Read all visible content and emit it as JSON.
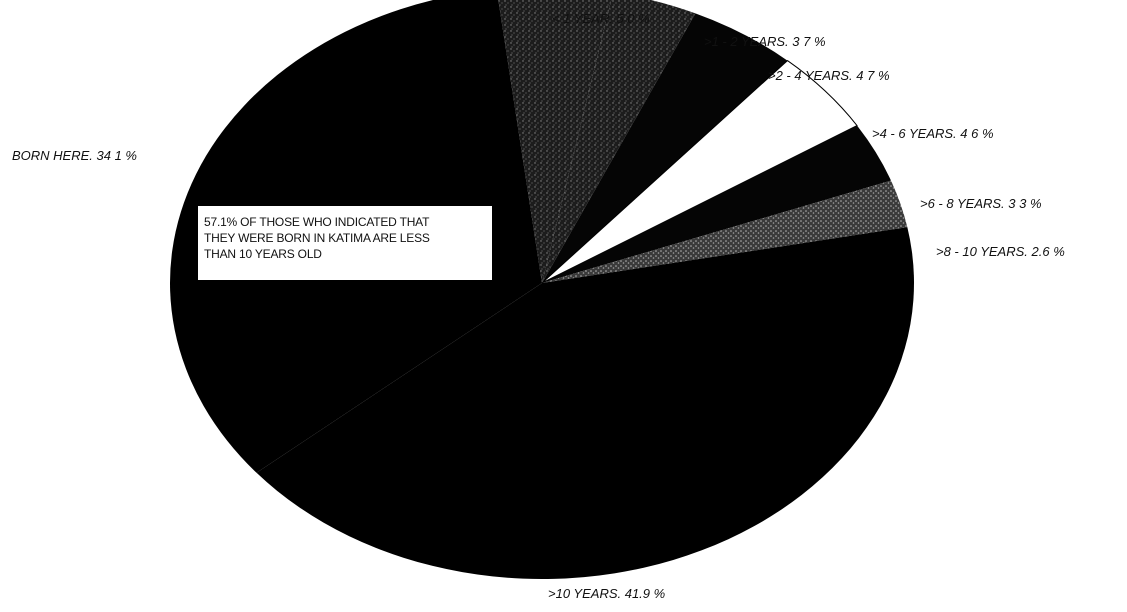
{
  "chart_data": {
    "type": "pie",
    "title": "",
    "slices": [
      {
        "label": "< 1 YEAR. 5 0 %",
        "value": 5.0,
        "color": "#1c1c1c",
        "pattern": "speckle-dark"
      },
      {
        "label": ">1 - 2 YEARS. 3 7 %",
        "value": 3.7,
        "color": "#2e2e2e",
        "pattern": "speckle-dark"
      },
      {
        "label": ">2 - 4 YEARS. 4 7 %",
        "value": 4.7,
        "color": "#050505",
        "pattern": "solid"
      },
      {
        "label": ">4 - 6 YEARS. 4 6 %",
        "value": 4.6,
        "color": "#ffffff",
        "pattern": "solid"
      },
      {
        "label": ">6 - 8 YEARS. 3 3 %",
        "value": 3.3,
        "color": "#050505",
        "pattern": "solid"
      },
      {
        "label": ">8 - 10 YEARS. 2.6 %",
        "value": 2.6,
        "color": "#3a3a3a",
        "pattern": "speckle-light"
      },
      {
        "label": ">10 YEARS. 41.9 %",
        "value": 41.9,
        "color": "#000000",
        "pattern": "solid"
      },
      {
        "label": "BORN HERE. 34 1 %",
        "value": 34.1,
        "color": "#000000",
        "pattern": "solid"
      }
    ],
    "annotation": "57.1% OF THOSE WHO INDICATED THAT\nTHEY WERE BORN IN KATIMA ARE LESS\nTHAN 10 YEARS OLD",
    "legend": "none"
  }
}
